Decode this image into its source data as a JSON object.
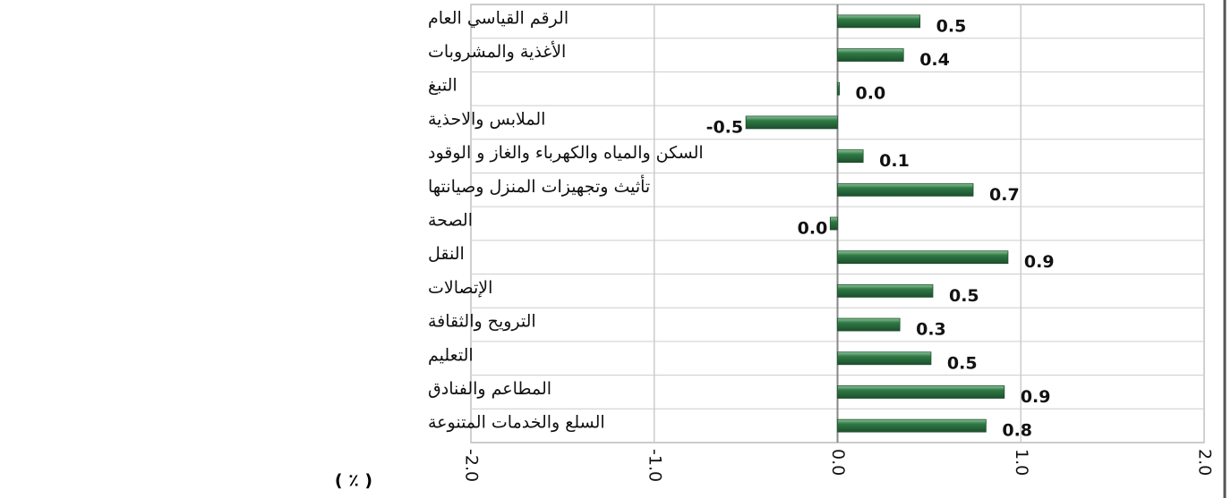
{
  "chart_data": {
    "type": "bar",
    "orientation": "horizontal",
    "x_label": "( ٪ )",
    "categories": [
      "الرقم القياسي العام",
      "الأغذية والمشروبات",
      "التبغ",
      "الملابس والاحذية",
      "السكن والمياه والكهرباء والغاز و الوقود",
      "تأثيث وتجهيزات المنزل وصيانتها",
      "الصحة",
      "النقل",
      "الإتصالات",
      "الترويح والثقافة",
      "التعليم",
      "المطاعم والفنادق",
      "السلع والخدمات المتنوعة"
    ],
    "values": [
      0.45,
      0.36,
      0.01,
      -0.5,
      0.14,
      0.74,
      -0.04,
      0.93,
      0.52,
      0.34,
      0.51,
      0.91,
      0.81
    ],
    "value_labels": [
      "0.5",
      "0.4",
      "0.0",
      "-0.5",
      "0.1",
      "0.7",
      "0.0",
      "0.9",
      "0.5",
      "0.3",
      "0.5",
      "0.9",
      "0.8"
    ],
    "color": "#2f7a45",
    "xlim": [
      -2,
      2
    ],
    "xticks": [
      {
        "value": -2,
        "label": "-2.0"
      },
      {
        "value": -1,
        "label": "-1.0"
      },
      {
        "value": 0,
        "label": "0.0"
      },
      {
        "value": 1,
        "label": "1.0"
      },
      {
        "value": 2,
        "label": "2.0"
      }
    ],
    "grid": true
  }
}
